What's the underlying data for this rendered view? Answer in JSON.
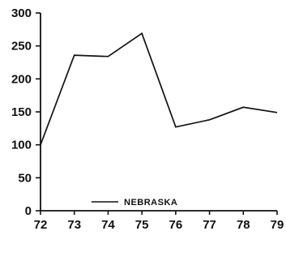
{
  "chart_data": {
    "type": "line",
    "x": [
      "72",
      "73",
      "74",
      "75",
      "76",
      "77",
      "78",
      "79"
    ],
    "series": [
      {
        "name": "NEBRASKA",
        "values": [
          100,
          236,
          234,
          269,
          127,
          138,
          157,
          149
        ]
      }
    ],
    "xlim": [
      72,
      79
    ],
    "ylim": [
      0,
      300
    ],
    "yticks": [
      "0",
      "50",
      "100",
      "150",
      "200",
      "250",
      "300"
    ],
    "title": "",
    "xlabel": "",
    "ylabel": "",
    "grid": false,
    "legend_position": "bottom-center",
    "line_color": "#111111"
  }
}
